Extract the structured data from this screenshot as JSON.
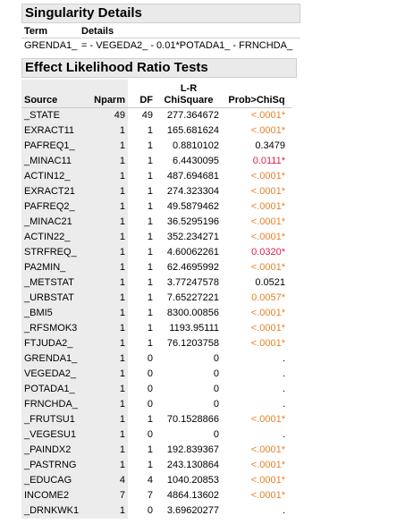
{
  "singularity": {
    "title": "Singularity Details",
    "col_term": "Term",
    "col_details": "Details",
    "term": "GRENDA1_",
    "details": "= - VEGEDA2_ - 0.01*POTADA1_ - FRNCHDA_"
  },
  "elr": {
    "title": "Effect Likelihood Ratio Tests",
    "columns": {
      "source": "Source",
      "nparm": "Nparm",
      "df": "DF",
      "chisq_top": "L-R",
      "chisq": "ChiSquare",
      "prob": "Prob>ChiSq"
    },
    "rows": [
      {
        "source": "_STATE",
        "nparm": "49",
        "df": "49",
        "chisq": "277.364672",
        "prob": "<.0001*",
        "sig": "orange"
      },
      {
        "source": "EXRACT11",
        "nparm": "1",
        "df": "1",
        "chisq": "165.681624",
        "prob": "<.0001*",
        "sig": "orange"
      },
      {
        "source": "PAFREQ1_",
        "nparm": "1",
        "df": "1",
        "chisq": "0.8810102",
        "prob": "0.3479",
        "sig": "none"
      },
      {
        "source": "_MINAC11",
        "nparm": "1",
        "df": "1",
        "chisq": "6.4430095",
        "prob": "0.0111*",
        "sig": "red"
      },
      {
        "source": "ACTIN12_",
        "nparm": "1",
        "df": "1",
        "chisq": "487.694681",
        "prob": "<.0001*",
        "sig": "orange"
      },
      {
        "source": "EXRACT21",
        "nparm": "1",
        "df": "1",
        "chisq": "274.323304",
        "prob": "<.0001*",
        "sig": "orange"
      },
      {
        "source": "PAFREQ2_",
        "nparm": "1",
        "df": "1",
        "chisq": "49.5879462",
        "prob": "<.0001*",
        "sig": "orange"
      },
      {
        "source": "_MINAC21",
        "nparm": "1",
        "df": "1",
        "chisq": "36.5295196",
        "prob": "<.0001*",
        "sig": "orange"
      },
      {
        "source": "ACTIN22_",
        "nparm": "1",
        "df": "1",
        "chisq": "352.234271",
        "prob": "<.0001*",
        "sig": "orange"
      },
      {
        "source": "STRFREQ_",
        "nparm": "1",
        "df": "1",
        "chisq": "4.60062261",
        "prob": "0.0320*",
        "sig": "red"
      },
      {
        "source": "PA2MIN_",
        "nparm": "1",
        "df": "1",
        "chisq": "62.4695992",
        "prob": "<.0001*",
        "sig": "orange"
      },
      {
        "source": "_METSTAT",
        "nparm": "1",
        "df": "1",
        "chisq": "3.77247578",
        "prob": "0.0521",
        "sig": "none"
      },
      {
        "source": "_URBSTAT",
        "nparm": "1",
        "df": "1",
        "chisq": "7.65227221",
        "prob": "0.0057*",
        "sig": "orange"
      },
      {
        "source": "_BMI5",
        "nparm": "1",
        "df": "1",
        "chisq": "8300.00856",
        "prob": "<.0001*",
        "sig": "orange"
      },
      {
        "source": "_RFSMOK3",
        "nparm": "1",
        "df": "1",
        "chisq": "1193.95111",
        "prob": "<.0001*",
        "sig": "orange"
      },
      {
        "source": "FTJUDA2_",
        "nparm": "1",
        "df": "1",
        "chisq": "76.1203758",
        "prob": "<.0001*",
        "sig": "orange"
      },
      {
        "source": "GRENDA1_",
        "nparm": "1",
        "df": "0",
        "chisq": "0",
        "prob": ".",
        "sig": "none"
      },
      {
        "source": "VEGEDA2_",
        "nparm": "1",
        "df": "0",
        "chisq": "0",
        "prob": ".",
        "sig": "none"
      },
      {
        "source": "POTADA1_",
        "nparm": "1",
        "df": "0",
        "chisq": "0",
        "prob": ".",
        "sig": "none"
      },
      {
        "source": "FRNCHDA_",
        "nparm": "1",
        "df": "0",
        "chisq": "0",
        "prob": ".",
        "sig": "none"
      },
      {
        "source": "_FRUTSU1",
        "nparm": "1",
        "df": "1",
        "chisq": "70.1528866",
        "prob": "<.0001*",
        "sig": "orange"
      },
      {
        "source": "_VEGESU1",
        "nparm": "1",
        "df": "0",
        "chisq": "0",
        "prob": ".",
        "sig": "none"
      },
      {
        "source": "_PAINDX2",
        "nparm": "1",
        "df": "1",
        "chisq": "192.839367",
        "prob": "<.0001*",
        "sig": "orange"
      },
      {
        "source": "_PASTRNG",
        "nparm": "1",
        "df": "1",
        "chisq": "243.130864",
        "prob": "<.0001*",
        "sig": "orange"
      },
      {
        "source": "_EDUCAG",
        "nparm": "4",
        "df": "4",
        "chisq": "1040.20853",
        "prob": "<.0001*",
        "sig": "orange"
      },
      {
        "source": "INCOME2",
        "nparm": "7",
        "df": "7",
        "chisq": "4864.13602",
        "prob": "<.0001*",
        "sig": "orange"
      },
      {
        "source": "_DRNKWK1",
        "nparm": "1",
        "df": "0",
        "chisq": "3.69620277",
        "prob": ".",
        "sig": "none"
      }
    ]
  },
  "colors": {
    "significant_orange": "#e8822b",
    "significant_red": "#e0204a",
    "header_bg": "#eaeaea",
    "column_shade": "#ececec"
  }
}
